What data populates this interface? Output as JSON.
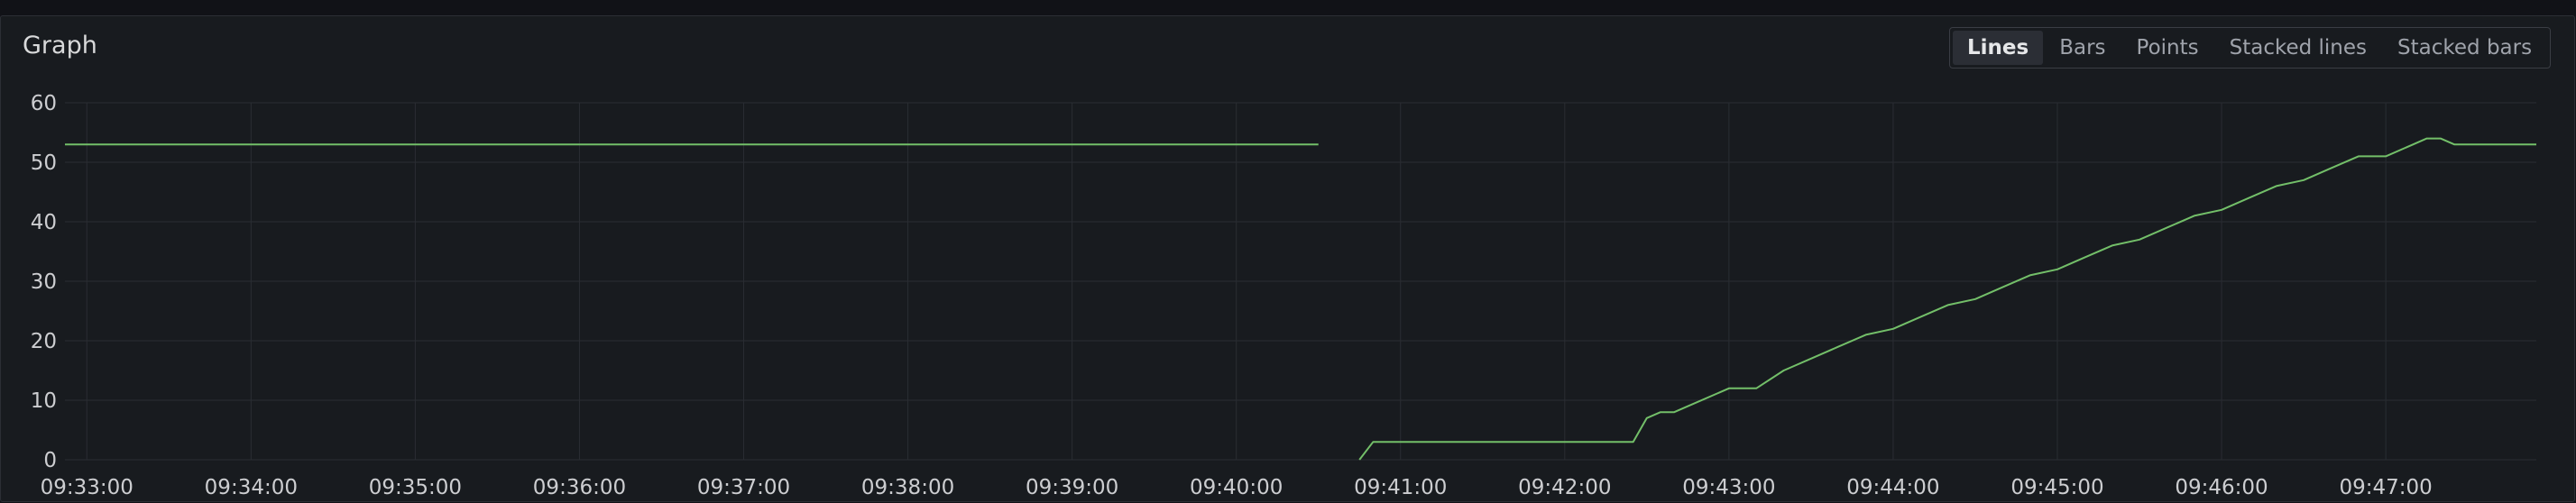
{
  "panel": {
    "title": "Graph"
  },
  "view_modes": [
    {
      "label": "Lines",
      "active": true
    },
    {
      "label": "Bars",
      "active": false
    },
    {
      "label": "Points",
      "active": false
    },
    {
      "label": "Stacked lines",
      "active": false
    },
    {
      "label": "Stacked bars",
      "active": false
    }
  ],
  "colors": {
    "series": "#73bf69",
    "grid": "#2a2d33",
    "background": "#181b1f"
  },
  "chart_data": {
    "type": "line",
    "title": "",
    "xlabel": "",
    "ylabel": "",
    "ylim": [
      0,
      60
    ],
    "xlim": [
      "09:32:52",
      "09:47:55"
    ],
    "y_ticks": [
      "0",
      "10",
      "20",
      "30",
      "40",
      "50",
      "60"
    ],
    "x_ticks": [
      "09:33:00",
      "09:34:00",
      "09:35:00",
      "09:36:00",
      "09:37:00",
      "09:38:00",
      "09:39:00",
      "09:40:00",
      "09:41:00",
      "09:42:00",
      "09:43:00",
      "09:44:00",
      "09:45:00",
      "09:46:00",
      "09:47:00"
    ],
    "grid": true,
    "legend": "none",
    "series": [
      {
        "x": [
          "09:32:52",
          "09:40:30",
          null,
          "09:40:45",
          "09:40:50",
          "09:42:25",
          "09:42:30",
          "09:42:35",
          "09:42:40",
          "09:42:45",
          "09:43:00",
          "09:43:10",
          "09:43:20",
          "09:43:30",
          "09:43:40",
          "09:43:50",
          "09:44:00",
          "09:44:10",
          "09:44:20",
          "09:44:30",
          "09:44:40",
          "09:44:50",
          "09:45:00",
          "09:45:10",
          "09:45:20",
          "09:45:30",
          "09:45:40",
          "09:45:50",
          "09:46:00",
          "09:46:10",
          "09:46:20",
          "09:46:30",
          "09:46:40",
          "09:46:50",
          "09:47:00",
          "09:47:10",
          "09:47:15",
          "09:47:20",
          "09:47:25",
          "09:47:55"
        ],
        "values": [
          53,
          53,
          null,
          0,
          3,
          3,
          7,
          8,
          8,
          9,
          12,
          12,
          15,
          17,
          19,
          21,
          22,
          24,
          26,
          27,
          29,
          31,
          32,
          34,
          36,
          37,
          39,
          41,
          42,
          44,
          46,
          47,
          49,
          51,
          51,
          53,
          54,
          54,
          53,
          53
        ]
      }
    ]
  }
}
